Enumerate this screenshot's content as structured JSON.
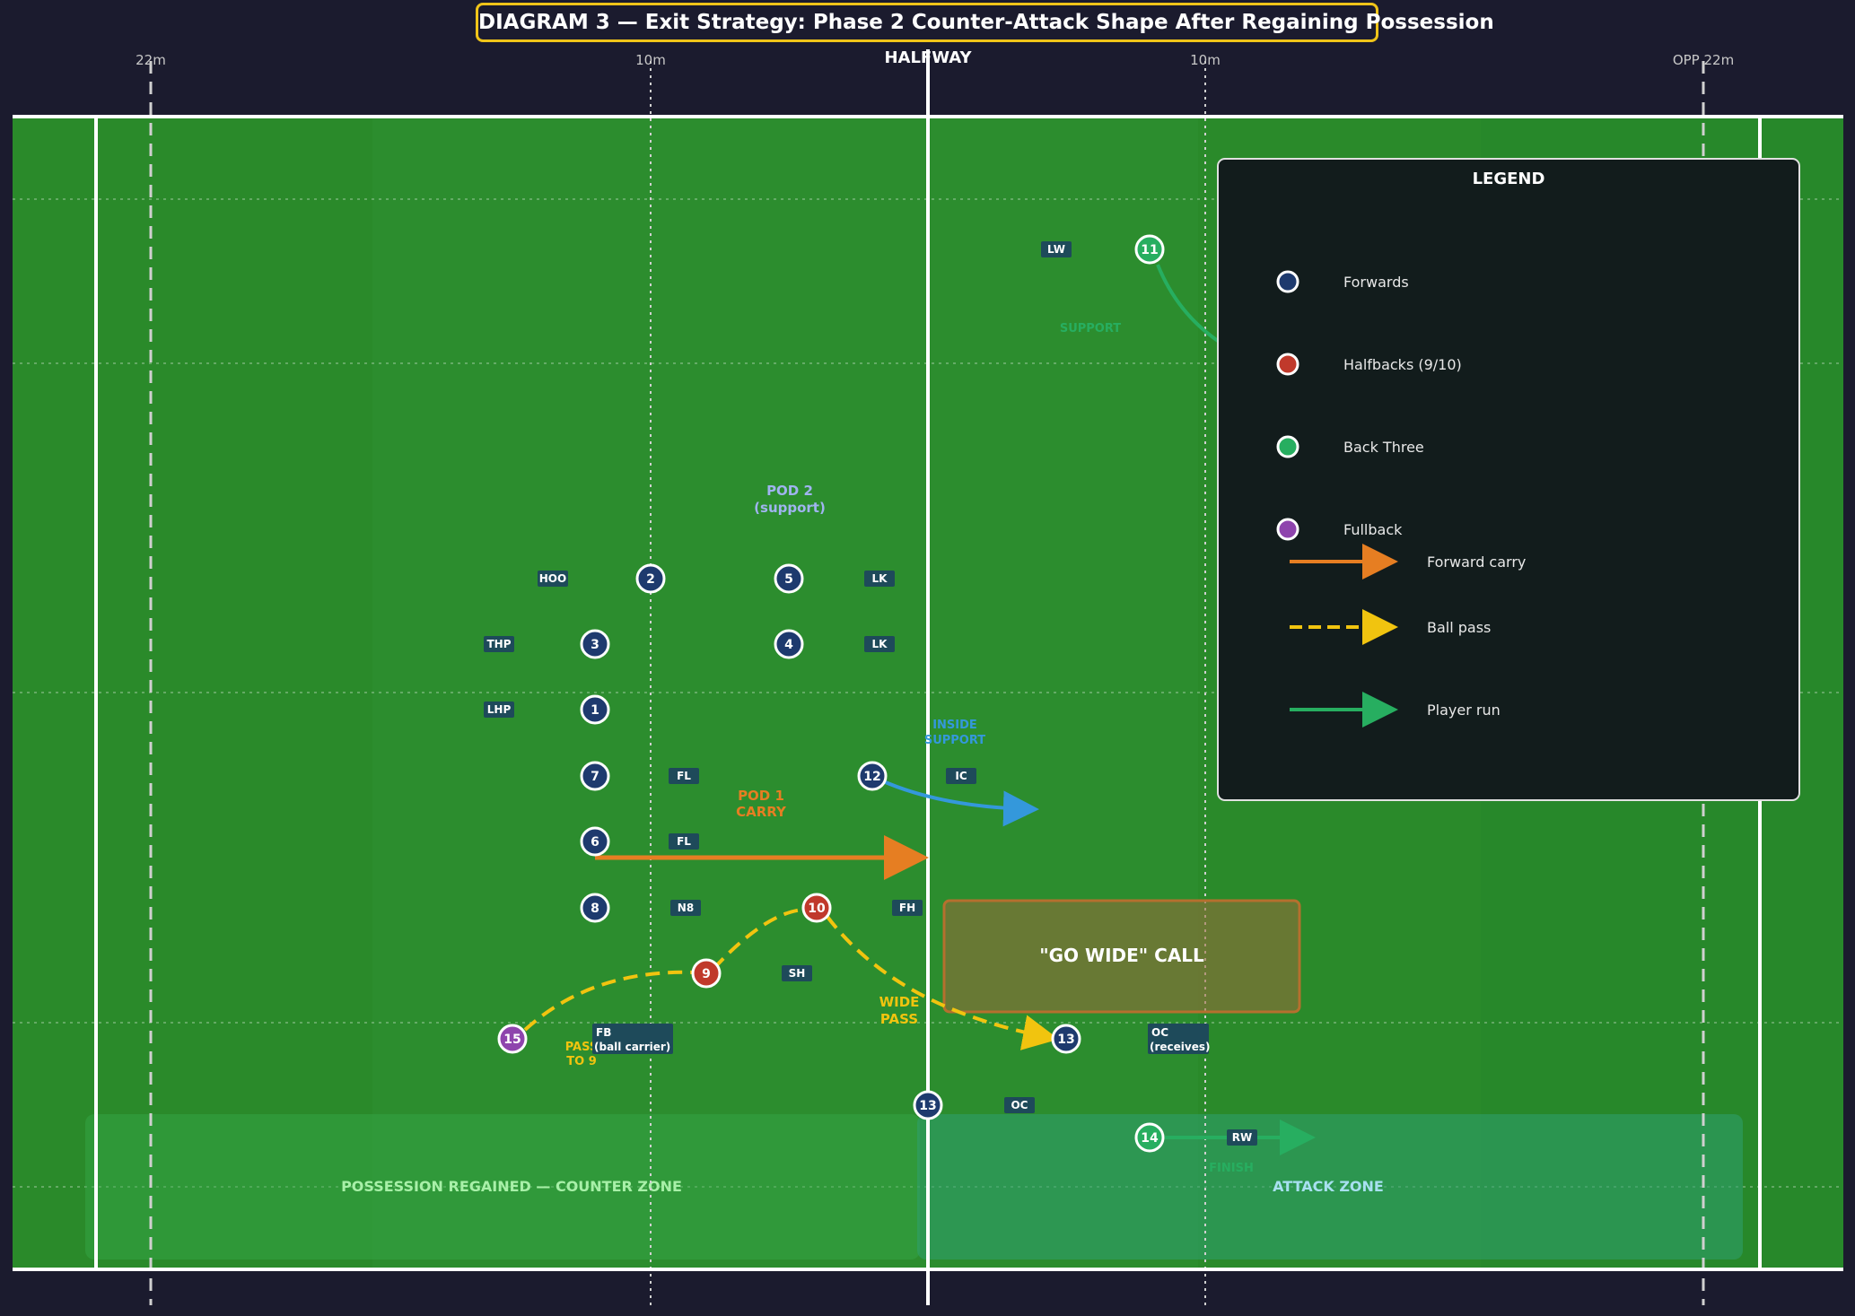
{
  "title": "DIAGRAM 3 — Exit Strategy: Phase 2 Counter-Attack Shape After Regaining Possession",
  "field_lines": {
    "l22": "22m",
    "l10a": "10m",
    "halfway": "HALFWAY",
    "l10b": "10m",
    "opp22": "OPP 22m"
  },
  "colors": {
    "background": "#1b1b2e",
    "pitch": "#2a8a2a",
    "forwards": "#1e3a6e",
    "halfbacks": "#c0392b",
    "back_three": "#27ae60",
    "fullback": "#8e44ad",
    "carry": "#e67e22",
    "pass": "#f1c40f",
    "run": "#27ae60",
    "support": "#3498db",
    "accent": "#f0c419"
  },
  "players": [
    {
      "num": "2",
      "role": "HOO",
      "group": "forwards"
    },
    {
      "num": "5",
      "role": "LK",
      "group": "forwards"
    },
    {
      "num": "3",
      "role": "THP",
      "group": "forwards"
    },
    {
      "num": "4",
      "role": "LK",
      "group": "forwards"
    },
    {
      "num": "1",
      "role": "LHP",
      "group": "forwards"
    },
    {
      "num": "7",
      "role": "FL",
      "group": "forwards"
    },
    {
      "num": "6",
      "role": "FL",
      "group": "forwards"
    },
    {
      "num": "8",
      "role": "N8",
      "group": "forwards"
    },
    {
      "num": "12",
      "role": "IC",
      "group": "forwards"
    },
    {
      "num": "10",
      "role": "FH",
      "group": "halfbacks"
    },
    {
      "num": "9",
      "role": "SH",
      "group": "halfbacks"
    },
    {
      "num": "15",
      "role": "FB",
      "role2": "(ball carrier)",
      "group": "fullback"
    },
    {
      "num": "13",
      "role": "OC",
      "role2": "(receives)",
      "group": "forwards"
    },
    {
      "num": "13",
      "role": "OC",
      "group": "forwards"
    },
    {
      "num": "11",
      "role": "LW",
      "group": "back_three"
    },
    {
      "num": "14",
      "role": "RW",
      "group": "back_three"
    }
  ],
  "annotations": {
    "pod2_line1": "POD 2",
    "pod2_line2": "(support)",
    "pod1_line1": "POD 1",
    "pod1_line2": "CARRY",
    "inside_line1": "INSIDE",
    "inside_line2": "SUPPORT",
    "wide_line1": "WIDE",
    "wide_line2": "PASS",
    "pass9_line1": "PASS",
    "pass9_line2": "TO 9",
    "support": "SUPPORT",
    "finish": "FINISH",
    "go_wide": "\"GO WIDE\" CALL"
  },
  "zones": {
    "counter": "POSSESSION REGAINED — COUNTER ZONE",
    "attack": "ATTACK ZONE"
  },
  "legend": {
    "title": "LEGEND",
    "items": [
      {
        "label": "Forwards",
        "kind": "dot",
        "color_key": "forwards"
      },
      {
        "label": "Halfbacks (9/10)",
        "kind": "dot",
        "color_key": "halfbacks"
      },
      {
        "label": "Back Three",
        "kind": "dot",
        "color_key": "back_three"
      },
      {
        "label": "Fullback",
        "kind": "dot",
        "color_key": "fullback"
      },
      {
        "label": "Forward carry",
        "kind": "arrow",
        "color_key": "carry"
      },
      {
        "label": "Ball pass",
        "kind": "dash",
        "color_key": "pass"
      },
      {
        "label": "Player run",
        "kind": "arrow",
        "color_key": "run"
      }
    ]
  }
}
